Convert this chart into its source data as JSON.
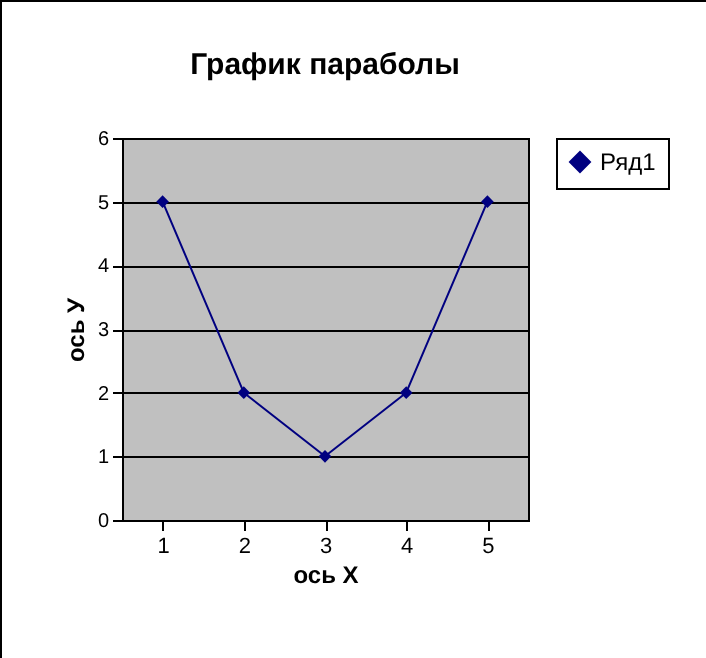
{
  "chart_data": {
    "type": "line",
    "title": "График параболы",
    "xlabel": "ось X",
    "ylabel": "ось У",
    "categories": [
      "1",
      "2",
      "3",
      "4",
      "5"
    ],
    "series": [
      {
        "name": "Ряд1",
        "color": "#000080",
        "values": [
          5,
          2,
          1,
          2,
          5
        ]
      }
    ],
    "ylim": [
      0,
      6
    ],
    "yticks": [
      0,
      1,
      2,
      3,
      4,
      5,
      6
    ],
    "grid": "y",
    "legend": "right",
    "marker": "diamond",
    "line_style": "solid"
  }
}
